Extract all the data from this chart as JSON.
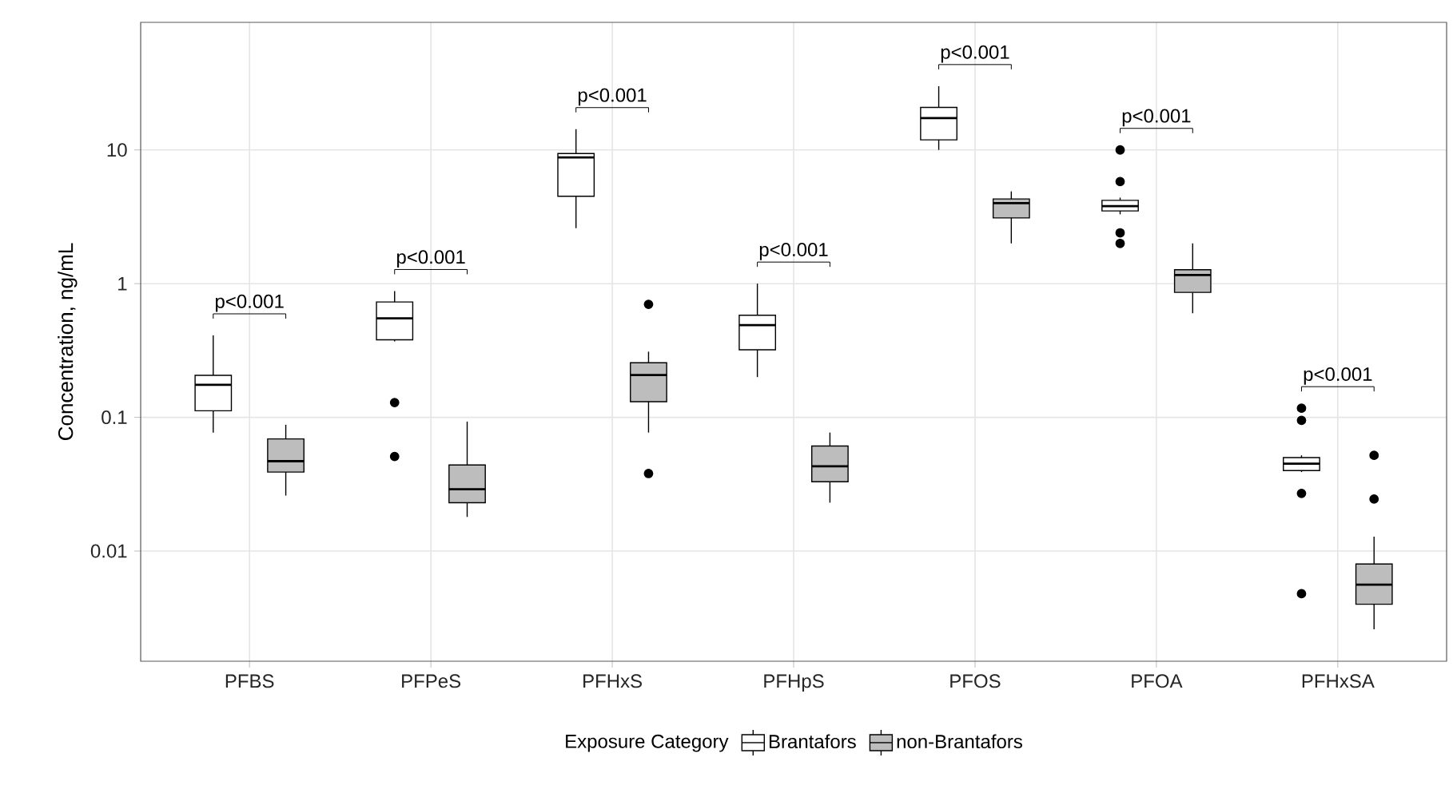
{
  "chart_data": {
    "type": "box",
    "ylabel": "Concentration, ng/mL",
    "legend_title": "Exposure Category",
    "legend": "bottom",
    "grid": true,
    "log": "y",
    "categories": [
      "PFBS",
      "PFPeS",
      "PFHxS",
      "PFHpS",
      "PFOS",
      "PFOA",
      "PFHxSA"
    ],
    "ylim": [
      0.0015,
      90
    ],
    "yticks": [
      0.01,
      0.1,
      1,
      10
    ],
    "series": [
      {
        "name": "Brantafors",
        "color": "#ffffff",
        "boxes": [
          {
            "low": 0.077,
            "q1": 0.112,
            "median": 0.175,
            "q3": 0.206,
            "high": 0.41
          },
          {
            "low": 0.37,
            "q1": 0.38,
            "median": 0.55,
            "q3": 0.73,
            "high": 0.88,
            "outliers": [
              0.129,
              0.051
            ]
          },
          {
            "low": 2.6,
            "q1": 4.5,
            "median": 8.8,
            "q3": 9.4,
            "high": 14.3
          },
          {
            "low": 0.2,
            "q1": 0.32,
            "median": 0.49,
            "q3": 0.58,
            "high": 1.0
          },
          {
            "low": 10,
            "q1": 11.9,
            "median": 17.3,
            "q3": 20.8,
            "high": 30
          },
          {
            "low": 3.3,
            "q1": 3.5,
            "median": 3.8,
            "q3": 4.2,
            "high": 4.4,
            "outliers": [
              10,
              5.8,
              2.4,
              2.0
            ]
          },
          {
            "low": 0.039,
            "q1": 0.04,
            "median": 0.045,
            "q3": 0.05,
            "high": 0.052,
            "outliers": [
              0.117,
              0.095,
              0.027,
              0.0048
            ]
          }
        ]
      },
      {
        "name": "non-Brantafors",
        "color": "#bdbdbd",
        "boxes": [
          {
            "low": 0.026,
            "q1": 0.039,
            "median": 0.047,
            "q3": 0.069,
            "high": 0.088
          },
          {
            "low": 0.018,
            "q1": 0.023,
            "median": 0.029,
            "q3": 0.044,
            "high": 0.093
          },
          {
            "low": 0.077,
            "q1": 0.131,
            "median": 0.207,
            "q3": 0.256,
            "high": 0.31,
            "outliers": [
              0.7,
              0.038
            ]
          },
          {
            "low": 0.023,
            "q1": 0.033,
            "median": 0.043,
            "q3": 0.061,
            "high": 0.077
          },
          {
            "low": 2.0,
            "q1": 3.1,
            "median": 4.0,
            "q3": 4.3,
            "high": 4.9
          },
          {
            "low": 0.6,
            "q1": 0.86,
            "median": 1.16,
            "q3": 1.27,
            "high": 2.0
          },
          {
            "low": 0.0026,
            "q1": 0.004,
            "median": 0.0056,
            "q3": 0.008,
            "high": 0.0128,
            "outliers": [
              0.052,
              0.0245
            ]
          }
        ]
      }
    ],
    "annotations": [
      "p<0.001",
      "p<0.001",
      "p<0.001",
      "p<0.001",
      "p<0.001",
      "p<0.001",
      "p<0.001"
    ]
  }
}
